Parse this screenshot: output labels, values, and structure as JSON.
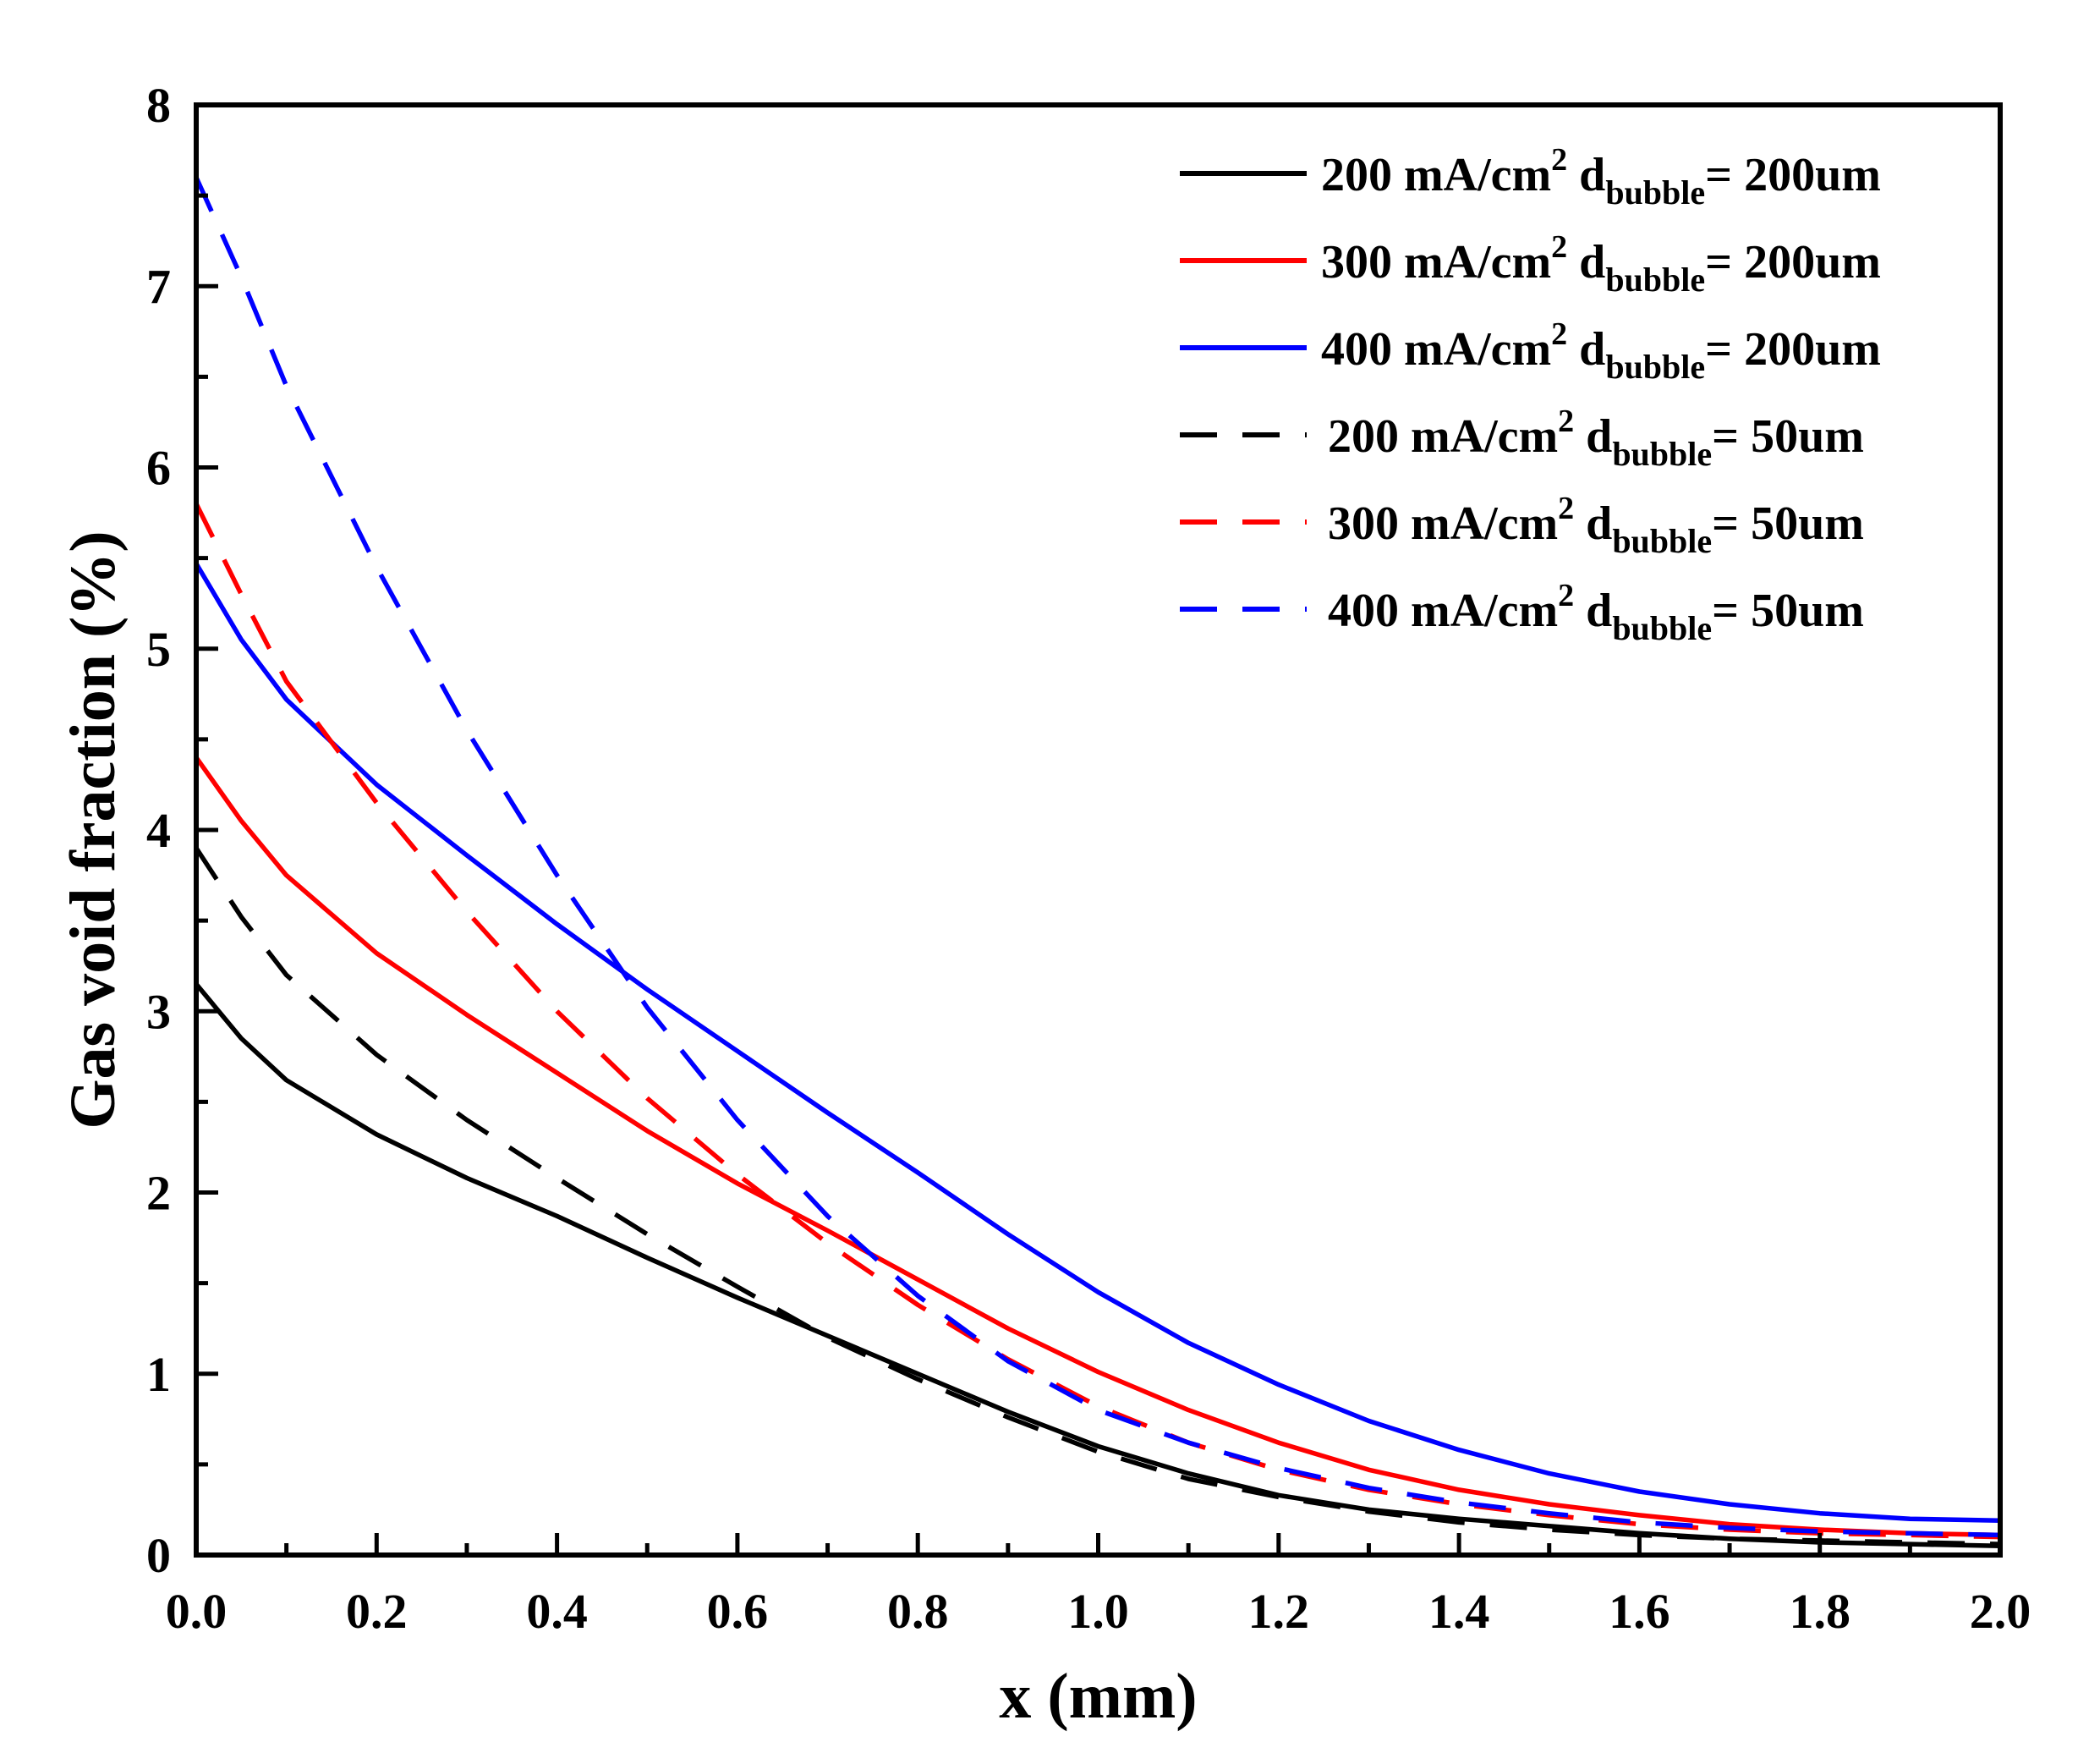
{
  "chart_data": {
    "type": "line",
    "title": "",
    "xlabel": "x (mm)",
    "ylabel": "Gas void fraction (%)",
    "xlim": [
      0.0,
      2.0
    ],
    "ylim": [
      0,
      8
    ],
    "xticks": [
      "0.0",
      "0.2",
      "0.4",
      "0.6",
      "0.8",
      "1.0",
      "1.2",
      "1.4",
      "1.6",
      "1.8",
      "2.0"
    ],
    "yticks": [
      "0",
      "1",
      "2",
      "3",
      "4",
      "5",
      "6",
      "7",
      "8"
    ],
    "legend_position": "top-right",
    "series": [
      {
        "name": "200 mA/cm² d_bubble= 200um",
        "legend": {
          "main": "200 mA/cm",
          "sup": "2",
          "d": "d",
          "sub": "bubble",
          "tail": "= 200um"
        },
        "color": "#000000",
        "style": "solid",
        "x": [
          0.0,
          0.05,
          0.1,
          0.2,
          0.3,
          0.4,
          0.5,
          0.6,
          0.7,
          0.8,
          0.9,
          1.0,
          1.1,
          1.2,
          1.3,
          1.4,
          1.5,
          1.6,
          1.7,
          1.8,
          1.9,
          2.0
        ],
        "y": [
          3.15,
          2.85,
          2.62,
          2.32,
          2.08,
          1.87,
          1.64,
          1.42,
          1.21,
          1.0,
          0.79,
          0.6,
          0.45,
          0.33,
          0.25,
          0.2,
          0.16,
          0.12,
          0.09,
          0.07,
          0.06,
          0.05
        ]
      },
      {
        "name": "300 mA/cm² d_bubble= 200um",
        "legend": {
          "main": "300 mA/cm",
          "sup": "2",
          "d": "d",
          "sub": "bubble",
          "tail": "= 200um"
        },
        "color": "#ff0000",
        "style": "solid",
        "x": [
          0.0,
          0.05,
          0.1,
          0.2,
          0.3,
          0.4,
          0.5,
          0.6,
          0.7,
          0.8,
          0.9,
          1.0,
          1.1,
          1.2,
          1.3,
          1.4,
          1.5,
          1.6,
          1.7,
          1.8,
          1.9,
          2.0
        ],
        "y": [
          4.4,
          4.05,
          3.75,
          3.32,
          2.98,
          2.66,
          2.34,
          2.05,
          1.79,
          1.52,
          1.25,
          1.01,
          0.8,
          0.62,
          0.47,
          0.36,
          0.28,
          0.22,
          0.17,
          0.14,
          0.12,
          0.11
        ]
      },
      {
        "name": "400 mA/cm² d_bubble= 200um",
        "legend": {
          "main": "400 mA/cm",
          "sup": "2",
          "d": "d",
          "sub": "bubble",
          "tail": "= 200um"
        },
        "color": "#0000ff",
        "style": "solid",
        "x": [
          0.0,
          0.05,
          0.1,
          0.2,
          0.3,
          0.4,
          0.5,
          0.6,
          0.7,
          0.8,
          0.9,
          1.0,
          1.1,
          1.2,
          1.3,
          1.4,
          1.5,
          1.6,
          1.7,
          1.8,
          1.9,
          2.0
        ],
        "y": [
          5.47,
          5.05,
          4.72,
          4.25,
          3.86,
          3.48,
          3.12,
          2.78,
          2.44,
          2.11,
          1.77,
          1.45,
          1.17,
          0.94,
          0.74,
          0.58,
          0.45,
          0.35,
          0.28,
          0.23,
          0.2,
          0.19
        ]
      },
      {
        "name": "200 mA/cm² d_bubble= 50um",
        "legend": {
          "main": "200 mA/cm",
          "sup": "2",
          "d": "d",
          "sub": "bubble",
          "tail": "= 50um"
        },
        "color": "#000000",
        "style": "dashed",
        "x": [
          0.0,
          0.05,
          0.1,
          0.2,
          0.3,
          0.4,
          0.5,
          0.6,
          0.7,
          0.8,
          0.9,
          1.0,
          1.1,
          1.2,
          1.3,
          1.4,
          1.5,
          1.6,
          1.7,
          1.8,
          1.9,
          2.0
        ],
        "y": [
          3.9,
          3.52,
          3.2,
          2.76,
          2.4,
          2.08,
          1.77,
          1.48,
          1.2,
          0.97,
          0.76,
          0.57,
          0.42,
          0.32,
          0.24,
          0.18,
          0.14,
          0.11,
          0.09,
          0.08,
          0.07,
          0.06
        ]
      },
      {
        "name": "300 mA/cm² d_bubble= 50um",
        "legend": {
          "main": "300 mA/cm",
          "sup": "2",
          "d": "d",
          "sub": "bubble",
          "tail": "= 50um"
        },
        "color": "#ff0000",
        "style": "dashed",
        "x": [
          0.0,
          0.05,
          0.1,
          0.2,
          0.3,
          0.4,
          0.5,
          0.6,
          0.7,
          0.8,
          0.9,
          1.0,
          1.1,
          1.2,
          1.3,
          1.4,
          1.5,
          1.6,
          1.7,
          1.8,
          1.9,
          2.0
        ],
        "y": [
          5.8,
          5.3,
          4.82,
          4.15,
          3.55,
          3.0,
          2.52,
          2.1,
          1.72,
          1.38,
          1.08,
          0.82,
          0.62,
          0.47,
          0.36,
          0.28,
          0.22,
          0.17,
          0.14,
          0.12,
          0.11,
          0.1
        ]
      },
      {
        "name": "400 mA/cm² d_bubble= 50um",
        "legend": {
          "main": "400 mA/cm",
          "sup": "2",
          "d": "d",
          "sub": "bubble",
          "tail": "= 50um"
        },
        "color": "#0000ff",
        "style": "dashed",
        "x": [
          0.0,
          0.05,
          0.1,
          0.2,
          0.3,
          0.4,
          0.5,
          0.6,
          0.7,
          0.8,
          0.9,
          1.0,
          1.1,
          1.2,
          1.3,
          1.4,
          1.5,
          1.6,
          1.7,
          1.8,
          1.9,
          2.0
        ],
        "y": [
          7.6,
          7.05,
          6.45,
          5.45,
          4.55,
          3.75,
          3.02,
          2.4,
          1.87,
          1.43,
          1.07,
          0.8,
          0.62,
          0.48,
          0.37,
          0.29,
          0.23,
          0.18,
          0.15,
          0.13,
          0.12,
          0.11
        ]
      }
    ]
  }
}
